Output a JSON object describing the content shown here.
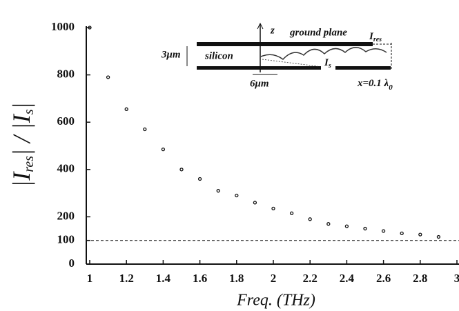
{
  "chart_data": {
    "type": "scatter",
    "ylabel_parts": [
      "|I",
      "res",
      "| / |I",
      "s",
      "|"
    ],
    "xlabel": "Freq. (THz)",
    "x": [
      1.0,
      1.1,
      1.2,
      1.3,
      1.4,
      1.5,
      1.6,
      1.7,
      1.8,
      1.9,
      2.0,
      2.1,
      2.2,
      2.3,
      2.4,
      2.5,
      2.6,
      2.7,
      2.8,
      2.9
    ],
    "values": [
      1000,
      790,
      655,
      570,
      485,
      400,
      360,
      310,
      290,
      260,
      235,
      215,
      190,
      170,
      160,
      150,
      140,
      130,
      125,
      115
    ],
    "color": "#111111",
    "hline": 100,
    "xlim": [
      1,
      3
    ],
    "xticks": [
      1,
      1.2,
      1.4,
      1.6,
      1.8,
      2,
      2.2,
      2.4,
      2.6,
      2.8,
      3
    ],
    "ylim": [
      0,
      1000
    ],
    "yticks": [
      0,
      100,
      200,
      400,
      600,
      800,
      1000
    ],
    "inset": {
      "z": "z",
      "ground_plane": "ground plane",
      "i_res": [
        "I",
        "res"
      ],
      "silicon": "silicon",
      "thickness": "3μm",
      "i_s": [
        "I",
        "s"
      ],
      "width": "6μm",
      "x_label": "x=0.1 λ",
      "x_sub": "0"
    }
  }
}
